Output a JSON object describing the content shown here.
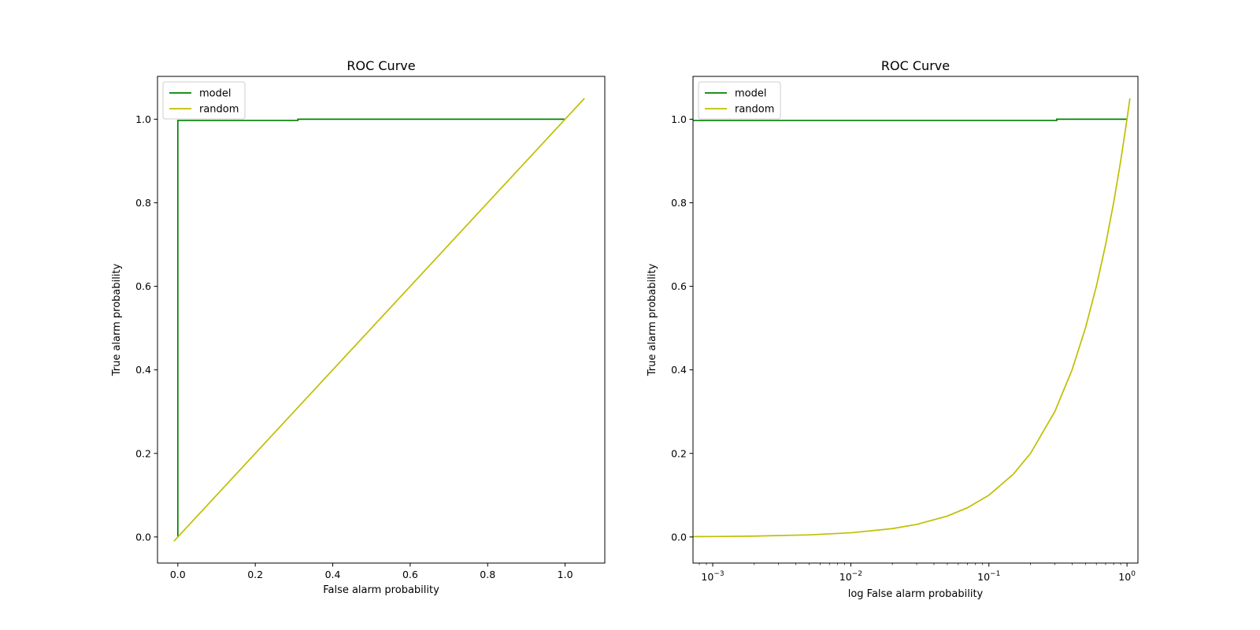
{
  "chart_data": [
    {
      "type": "line",
      "title": "ROC Curve",
      "xlabel": "False alarm probability",
      "ylabel": "True alarm probability",
      "xscale": "linear",
      "xlim": [
        -0.0525,
        1.1025
      ],
      "ylim": [
        -0.0625,
        1.1025
      ],
      "xticks": [
        0.0,
        0.2,
        0.4,
        0.6,
        0.8,
        1.0
      ],
      "xtick_labels": [
        "0.0",
        "0.2",
        "0.4",
        "0.6",
        "0.8",
        "1.0"
      ],
      "yticks": [
        0.0,
        0.2,
        0.4,
        0.6,
        0.8,
        1.0
      ],
      "ytick_labels": [
        "0.0",
        "0.2",
        "0.4",
        "0.6",
        "0.8",
        "1.0"
      ],
      "legend": "upper-left",
      "grid": false,
      "series": [
        {
          "name": "model",
          "color": "#008000",
          "x": [
            0.0,
            0.0,
            0.002,
            0.31,
            0.31,
            1.0,
            1.0
          ],
          "y": [
            0.0,
            0.997,
            0.997,
            0.997,
            1.0,
            1.0,
            1.0
          ]
        },
        {
          "name": "random",
          "color": "#bfbf00",
          "x": [
            -0.01,
            1.05
          ],
          "y": [
            -0.01,
            1.05
          ]
        }
      ]
    },
    {
      "type": "line",
      "title": "ROC Curve",
      "xlabel": "log False alarm probability",
      "ylabel": "True alarm probability",
      "xscale": "log",
      "xlim": [
        0.00072,
        1.2
      ],
      "ylim": [
        -0.0625,
        1.1025
      ],
      "xticks": [
        0.001,
        0.01,
        0.1,
        1
      ],
      "xtick_labels": [
        {
          "base": "10",
          "exp": "−3"
        },
        {
          "base": "10",
          "exp": "−2"
        },
        {
          "base": "10",
          "exp": "−1"
        },
        {
          "base": "10",
          "exp": "0"
        }
      ],
      "yticks": [
        0.0,
        0.2,
        0.4,
        0.6,
        0.8,
        1.0
      ],
      "ytick_labels": [
        "0.0",
        "0.2",
        "0.4",
        "0.6",
        "0.8",
        "1.0"
      ],
      "legend": "upper-left",
      "grid": false,
      "series": [
        {
          "name": "model",
          "color": "#008000",
          "x": [
            0.0007,
            0.31,
            0.31,
            1.0
          ],
          "y": [
            0.997,
            0.997,
            1.0,
            1.0
          ]
        },
        {
          "name": "random",
          "color": "#bfbf00",
          "x": [
            0.0007,
            0.001,
            0.002,
            0.005,
            0.01,
            0.02,
            0.03,
            0.05,
            0.07,
            0.1,
            0.15,
            0.2,
            0.3,
            0.4,
            0.5,
            0.6,
            0.7,
            0.8,
            0.9,
            1.0,
            1.05
          ],
          "y": [
            0.0007,
            0.001,
            0.002,
            0.005,
            0.01,
            0.02,
            0.03,
            0.05,
            0.07,
            0.1,
            0.15,
            0.2,
            0.3,
            0.4,
            0.5,
            0.6,
            0.7,
            0.8,
            0.9,
            1.0,
            1.05
          ]
        }
      ]
    }
  ]
}
